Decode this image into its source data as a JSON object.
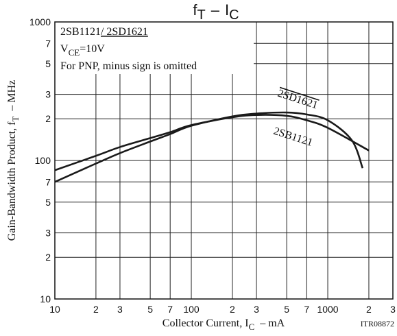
{
  "chart_data": {
    "type": "line",
    "title_parts": [
      "f",
      "T",
      "–",
      "I",
      "C"
    ],
    "x_label_parts": [
      "Collector Current, I",
      "C",
      "–  mA"
    ],
    "y_label_parts": [
      "Gain-Bandwidth Product, f",
      "T",
      "–  MHz"
    ],
    "legend_lines": [
      "2SB1121",
      "/ 2SD1621",
      "V",
      "CE",
      "=10V",
      "For PNP, minus sign is omitted"
    ],
    "code": "ITR08872",
    "log_x": true,
    "log_y": true,
    "grid": true,
    "xlim": [
      10,
      3000
    ],
    "ylim": [
      10,
      1000
    ],
    "xticks": [
      10,
      {
        "value": 20,
        "label": "2"
      },
      {
        "value": 30,
        "label": "3"
      },
      {
        "value": 50,
        "label": "5"
      },
      {
        "value": 70,
        "label": "7"
      },
      100,
      {
        "value": 200,
        "label": "2"
      },
      {
        "value": 300,
        "label": "3"
      },
      {
        "value": 500,
        "label": "5"
      },
      {
        "value": 700,
        "label": "7"
      },
      1000,
      {
        "value": 2000,
        "label": "2"
      },
      {
        "value": 3000,
        "label": "3"
      }
    ],
    "yticks": [
      10,
      {
        "value": 20,
        "label": "2"
      },
      {
        "value": 30,
        "label": "3"
      },
      {
        "value": 50,
        "label": "5"
      },
      {
        "value": 70,
        "label": "7"
      },
      100,
      {
        "value": 200,
        "label": "2"
      },
      {
        "value": 300,
        "label": "3"
      },
      {
        "value": 500,
        "label": "5"
      },
      {
        "value": 700,
        "label": "7"
      },
      1000
    ],
    "series": [
      {
        "name": "2SB1121",
        "color": "#1a1a1a",
        "x": [
          10,
          20,
          30,
          50,
          70,
          100,
          200,
          300,
          500,
          700,
          1000,
          2000
        ],
        "values": [
          85,
          108,
          125,
          145,
          160,
          180,
          205,
          213,
          210,
          195,
          172,
          118
        ]
      },
      {
        "name": "2SD1621",
        "color": "#1a1a1a",
        "x": [
          10,
          20,
          30,
          50,
          70,
          100,
          200,
          300,
          500,
          700,
          1000,
          1500,
          1800
        ],
        "values": [
          70,
          95,
          113,
          137,
          155,
          178,
          208,
          218,
          222,
          215,
          195,
          140,
          88
        ]
      }
    ]
  }
}
